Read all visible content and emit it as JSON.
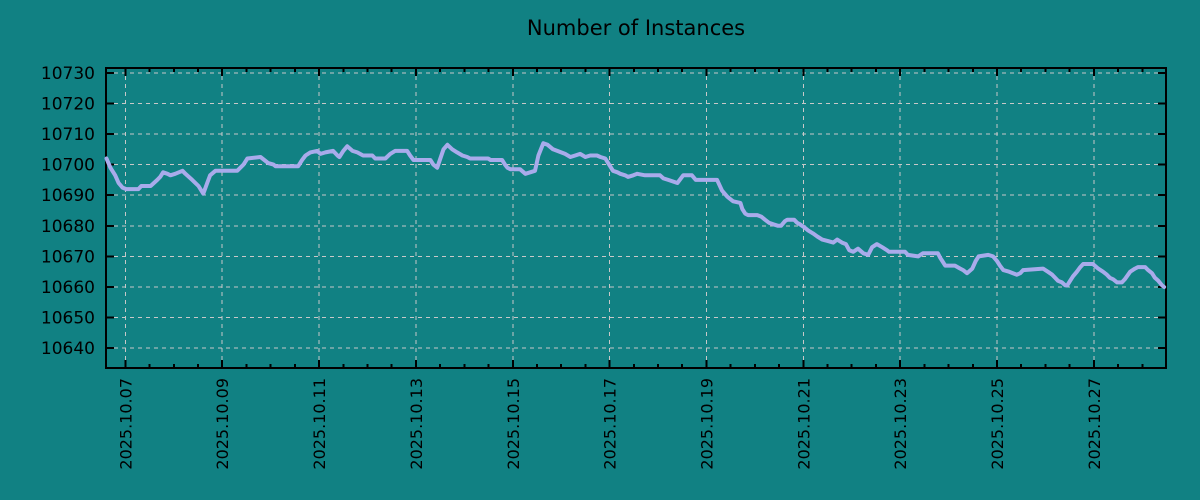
{
  "title": "Number of Instances",
  "colors": {
    "background": "#118183",
    "line": "#a9abeb",
    "grid": "#c8c8c8",
    "axis": "#000000",
    "text": "#000000"
  },
  "chart_data": {
    "type": "line",
    "title": "Number of Instances",
    "xlabel": "",
    "ylabel": "",
    "legend": false,
    "grid": true,
    "x_axis": {
      "unit": "date (fractional day of October 2025)",
      "range_days": [
        6.6,
        28.49
      ],
      "tick_days": [
        7,
        9,
        11,
        13,
        15,
        17,
        19,
        21,
        23,
        25,
        27
      ],
      "tick_labels": [
        "2025.10.07",
        "2025.10.09",
        "2025.10.11",
        "2025.10.13",
        "2025.10.15",
        "2025.10.17",
        "2025.10.19",
        "2025.10.21",
        "2025.10.23",
        "2025.10.25",
        "2025.10.27"
      ],
      "minor_tick_step_days": 0.5
    },
    "y_axis": {
      "range": [
        10633.5,
        10731.6
      ],
      "tick_values": [
        10640,
        10650,
        10660,
        10670,
        10680,
        10690,
        10700,
        10710,
        10720,
        10730
      ],
      "tick_labels": [
        "10640",
        "10650",
        "10660",
        "10670",
        "10680",
        "10690",
        "10700",
        "10710",
        "10720",
        "10730"
      ]
    },
    "series": [
      {
        "name": "instances",
        "color": "#a9abeb",
        "points": [
          [
            6.61,
            10702
          ],
          [
            6.69,
            10699
          ],
          [
            6.79,
            10696.5
          ],
          [
            6.86,
            10694
          ],
          [
            6.94,
            10692.5
          ],
          [
            7.02,
            10692
          ],
          [
            7.27,
            10692
          ],
          [
            7.33,
            10693
          ],
          [
            7.52,
            10693
          ],
          [
            7.66,
            10695
          ],
          [
            7.72,
            10696
          ],
          [
            7.78,
            10697.5
          ],
          [
            7.87,
            10697
          ],
          [
            7.93,
            10696.5
          ],
          [
            8.03,
            10697
          ],
          [
            8.18,
            10698
          ],
          [
            8.24,
            10697
          ],
          [
            8.38,
            10695
          ],
          [
            8.51,
            10693
          ],
          [
            8.61,
            10690.5
          ],
          [
            8.69,
            10694
          ],
          [
            8.75,
            10696.5
          ],
          [
            8.86,
            10698
          ],
          [
            9.31,
            10698
          ],
          [
            9.44,
            10700
          ],
          [
            9.52,
            10702
          ],
          [
            9.79,
            10702.5
          ],
          [
            9.87,
            10701.5
          ],
          [
            9.95,
            10700.5
          ],
          [
            10.06,
            10700
          ],
          [
            10.1,
            10699.5
          ],
          [
            10.57,
            10699.5
          ],
          [
            10.65,
            10701.5
          ],
          [
            10.72,
            10703
          ],
          [
            10.82,
            10704
          ],
          [
            10.96,
            10704.5
          ],
          [
            11.03,
            10703.5
          ],
          [
            11.13,
            10704
          ],
          [
            11.29,
            10704.5
          ],
          [
            11.38,
            10703
          ],
          [
            11.42,
            10702.5
          ],
          [
            11.5,
            10704.5
          ],
          [
            11.58,
            10706
          ],
          [
            11.69,
            10704.5
          ],
          [
            11.79,
            10704
          ],
          [
            11.91,
            10703
          ],
          [
            12.1,
            10703
          ],
          [
            12.16,
            10702
          ],
          [
            12.37,
            10702
          ],
          [
            12.47,
            10703.5
          ],
          [
            12.57,
            10704.5
          ],
          [
            12.82,
            10704.5
          ],
          [
            12.88,
            10703
          ],
          [
            12.95,
            10701.5
          ],
          [
            13.3,
            10701.5
          ],
          [
            13.36,
            10700
          ],
          [
            13.44,
            10699
          ],
          [
            13.57,
            10705
          ],
          [
            13.65,
            10706.5
          ],
          [
            13.75,
            10705
          ],
          [
            13.85,
            10704
          ],
          [
            13.96,
            10703
          ],
          [
            14.06,
            10702.5
          ],
          [
            14.12,
            10702
          ],
          [
            14.49,
            10702
          ],
          [
            14.54,
            10701.5
          ],
          [
            14.78,
            10701.5
          ],
          [
            14.84,
            10700
          ],
          [
            14.89,
            10699
          ],
          [
            14.95,
            10698.5
          ],
          [
            15.15,
            10698.5
          ],
          [
            15.26,
            10697
          ],
          [
            15.36,
            10697.5
          ],
          [
            15.46,
            10698
          ],
          [
            15.53,
            10703
          ],
          [
            15.63,
            10707
          ],
          [
            15.72,
            10706.5
          ],
          [
            15.83,
            10705
          ],
          [
            15.92,
            10704.5
          ],
          [
            16.08,
            10703.5
          ],
          [
            16.19,
            10702.5
          ],
          [
            16.29,
            10703
          ],
          [
            16.39,
            10703.5
          ],
          [
            16.5,
            10702.5
          ],
          [
            16.6,
            10703
          ],
          [
            16.74,
            10703
          ],
          [
            16.81,
            10702.5
          ],
          [
            16.91,
            10702
          ],
          [
            17.01,
            10699.5
          ],
          [
            17.07,
            10698
          ],
          [
            17.16,
            10697.5
          ],
          [
            17.22,
            10697
          ],
          [
            17.32,
            10696.5
          ],
          [
            17.38,
            10696
          ],
          [
            17.49,
            10696.5
          ],
          [
            17.57,
            10697
          ],
          [
            17.73,
            10696.5
          ],
          [
            18.04,
            10696.5
          ],
          [
            18.11,
            10695.5
          ],
          [
            18.21,
            10695
          ],
          [
            18.31,
            10694.5
          ],
          [
            18.4,
            10694
          ],
          [
            18.52,
            10696.5
          ],
          [
            18.7,
            10696.5
          ],
          [
            18.78,
            10695
          ],
          [
            19.22,
            10695
          ],
          [
            19.32,
            10691.5
          ],
          [
            19.43,
            10689.5
          ],
          [
            19.55,
            10688
          ],
          [
            19.7,
            10687.5
          ],
          [
            19.74,
            10685.5
          ],
          [
            19.8,
            10684
          ],
          [
            19.86,
            10683.5
          ],
          [
            20.05,
            10683.5
          ],
          [
            20.13,
            10683
          ],
          [
            20.21,
            10682
          ],
          [
            20.29,
            10681
          ],
          [
            20.38,
            10680.5
          ],
          [
            20.48,
            10680
          ],
          [
            20.54,
            10680
          ],
          [
            20.62,
            10681.5
          ],
          [
            20.67,
            10682
          ],
          [
            20.81,
            10682
          ],
          [
            20.87,
            10681
          ],
          [
            20.93,
            10680.5
          ],
          [
            21.02,
            10679.5
          ],
          [
            21.1,
            10678.5
          ],
          [
            21.2,
            10677.5
          ],
          [
            21.29,
            10676.5
          ],
          [
            21.39,
            10675.5
          ],
          [
            21.51,
            10675
          ],
          [
            21.62,
            10674.5
          ],
          [
            21.7,
            10675.5
          ],
          [
            21.8,
            10674.5
          ],
          [
            21.88,
            10674
          ],
          [
            21.95,
            10672
          ],
          [
            22.03,
            10671.5
          ],
          [
            22.13,
            10672.5
          ],
          [
            22.24,
            10671
          ],
          [
            22.34,
            10670.5
          ],
          [
            22.42,
            10673
          ],
          [
            22.52,
            10674
          ],
          [
            22.63,
            10673
          ],
          [
            22.73,
            10672
          ],
          [
            22.77,
            10671.5
          ],
          [
            23.1,
            10671.5
          ],
          [
            23.16,
            10670.5
          ],
          [
            23.37,
            10670
          ],
          [
            23.47,
            10671
          ],
          [
            23.78,
            10671
          ],
          [
            23.83,
            10669.5
          ],
          [
            23.87,
            10668.5
          ],
          [
            23.93,
            10667
          ],
          [
            24.13,
            10667
          ],
          [
            24.24,
            10666
          ],
          [
            24.3,
            10665.5
          ],
          [
            24.38,
            10664.5
          ],
          [
            24.49,
            10666
          ],
          [
            24.56,
            10668.5
          ],
          [
            24.62,
            10670
          ],
          [
            24.82,
            10670.5
          ],
          [
            24.92,
            10670
          ],
          [
            25.0,
            10668.5
          ],
          [
            25.06,
            10667
          ],
          [
            25.13,
            10665.5
          ],
          [
            25.25,
            10665
          ],
          [
            25.33,
            10664.5
          ],
          [
            25.41,
            10664
          ],
          [
            25.48,
            10664.5
          ],
          [
            25.54,
            10665.5
          ],
          [
            25.95,
            10666
          ],
          [
            26.05,
            10665
          ],
          [
            26.14,
            10664
          ],
          [
            26.2,
            10663
          ],
          [
            26.26,
            10662
          ],
          [
            26.34,
            10661.5
          ],
          [
            26.41,
            10660.5
          ],
          [
            26.45,
            10660.5
          ],
          [
            26.51,
            10662
          ],
          [
            26.57,
            10663.5
          ],
          [
            26.65,
            10665
          ],
          [
            26.72,
            10666.5
          ],
          [
            26.78,
            10667.5
          ],
          [
            26.98,
            10667.5
          ],
          [
            27.09,
            10666
          ],
          [
            27.19,
            10665
          ],
          [
            27.27,
            10664
          ],
          [
            27.33,
            10663
          ],
          [
            27.4,
            10662.5
          ],
          [
            27.48,
            10661.5
          ],
          [
            27.58,
            10661.5
          ],
          [
            27.64,
            10662.5
          ],
          [
            27.75,
            10665
          ],
          [
            27.85,
            10666
          ],
          [
            27.91,
            10666.5
          ],
          [
            28.06,
            10666.5
          ],
          [
            28.12,
            10665.5
          ],
          [
            28.2,
            10664.5
          ],
          [
            28.26,
            10663
          ],
          [
            28.33,
            10662
          ],
          [
            28.41,
            10660.5
          ],
          [
            28.45,
            10660
          ]
        ]
      }
    ]
  }
}
